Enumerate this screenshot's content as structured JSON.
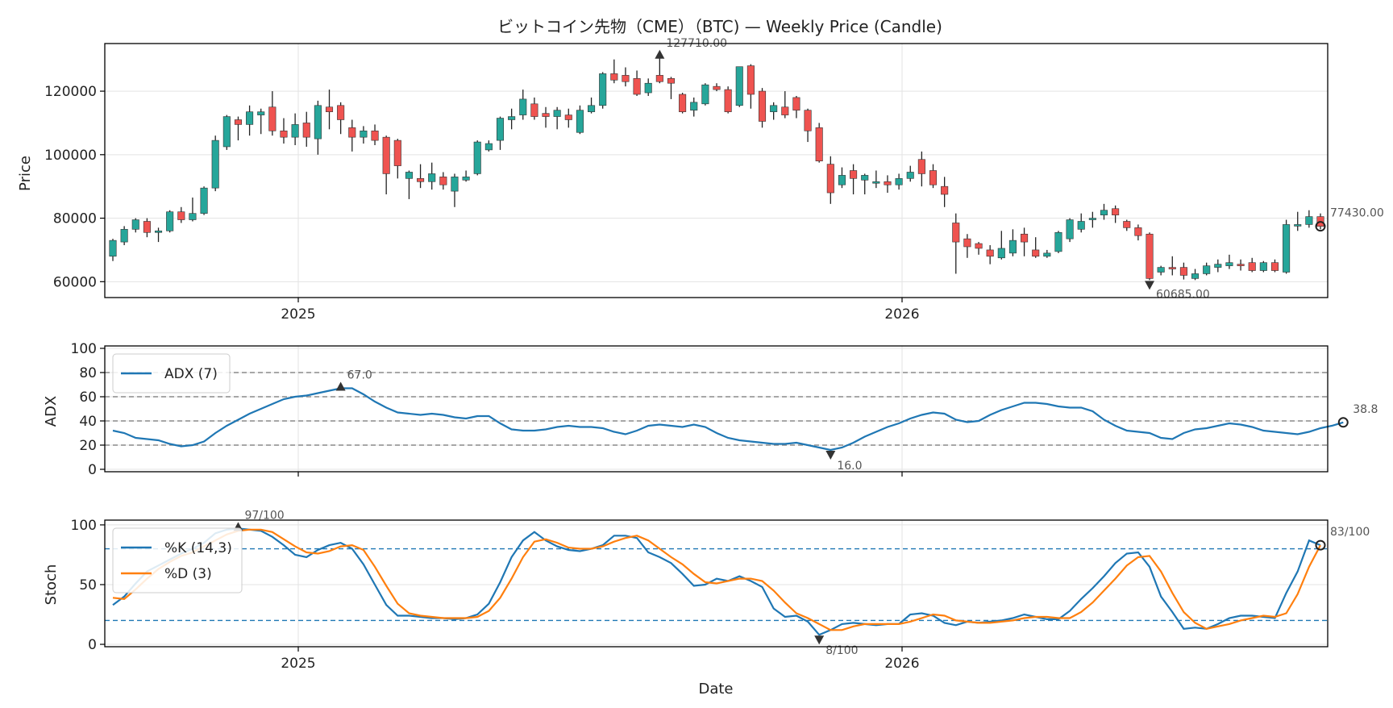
{
  "chart_data": {
    "title": "ビットコイン先物（CME）（BTC) — Weekly Price (Candle)",
    "xlabel": "Date",
    "x_ticks": [
      "2025",
      "2026"
    ],
    "colors": {
      "up": "#26a69a",
      "down": "#ef5350",
      "adx": "#1f77b4",
      "k": "#1f77b4",
      "d": "#ff7f0e"
    },
    "panels": [
      {
        "type": "candlestick",
        "ylabel": "Price",
        "ylim": [
          55000,
          135000
        ],
        "yticks": [
          60000,
          80000,
          100000,
          120000
        ],
        "grid": true,
        "annotations": {
          "high": "127710.00",
          "low": "60685.00",
          "last": "77430.00"
        },
        "candles": [
          [
            68000,
            73000,
            66500,
            73500
          ],
          [
            72500,
            76500,
            71500,
            77500
          ],
          [
            76500,
            79500,
            75500,
            80000
          ],
          [
            79000,
            75500,
            74000,
            80000
          ],
          [
            75500,
            76000,
            72500,
            77000
          ],
          [
            76000,
            82000,
            75500,
            82500
          ],
          [
            82000,
            79500,
            78500,
            83500
          ],
          [
            79500,
            81500,
            79000,
            86500
          ],
          [
            81500,
            89500,
            81000,
            90000
          ],
          [
            89500,
            104500,
            88500,
            106000
          ],
          [
            102500,
            112000,
            101500,
            112500
          ],
          [
            111000,
            109500,
            104500,
            112000
          ],
          [
            109500,
            113500,
            106000,
            115500
          ],
          [
            112500,
            113500,
            106500,
            114500
          ],
          [
            115000,
            107500,
            106000,
            120000
          ],
          [
            107500,
            105500,
            103500,
            111500
          ],
          [
            105500,
            109500,
            103000,
            113000
          ],
          [
            110000,
            105500,
            102500,
            113500
          ],
          [
            105000,
            115500,
            100000,
            117000
          ],
          [
            115000,
            113500,
            108000,
            120500
          ],
          [
            115500,
            111000,
            106500,
            116500
          ],
          [
            108500,
            105500,
            101000,
            111000
          ],
          [
            105500,
            107500,
            103500,
            109000
          ],
          [
            107500,
            104500,
            103000,
            109500
          ],
          [
            105500,
            94000,
            87500,
            106000
          ],
          [
            104500,
            96500,
            92500,
            105000
          ],
          [
            92500,
            94500,
            86000,
            95000
          ],
          [
            92500,
            91500,
            89500,
            97000
          ],
          [
            91500,
            94000,
            89000,
            97500
          ],
          [
            93000,
            90500,
            89000,
            94500
          ],
          [
            88500,
            93000,
            83500,
            94000
          ],
          [
            92000,
            93000,
            91500,
            95000
          ],
          [
            94000,
            104000,
            93500,
            104500
          ],
          [
            101500,
            103500,
            101000,
            104500
          ],
          [
            104500,
            111500,
            101500,
            112000
          ],
          [
            111000,
            112000,
            108000,
            114500
          ],
          [
            112500,
            117500,
            111000,
            120500
          ],
          [
            116000,
            112000,
            111000,
            118000
          ],
          [
            113000,
            112000,
            108500,
            115000
          ],
          [
            112000,
            114000,
            108000,
            115000
          ],
          [
            112500,
            111000,
            108500,
            114500
          ],
          [
            107000,
            114000,
            106500,
            115500
          ],
          [
            113500,
            115500,
            113000,
            118000
          ],
          [
            115500,
            125500,
            114500,
            126000
          ],
          [
            125500,
            123500,
            122500,
            130000
          ],
          [
            125000,
            123000,
            121500,
            127500
          ],
          [
            124000,
            119000,
            118500,
            126500
          ],
          [
            119500,
            122500,
            118500,
            124000
          ],
          [
            125000,
            123000,
            122500,
            131000
          ],
          [
            124000,
            122500,
            117500,
            124500
          ],
          [
            119000,
            113500,
            113000,
            119500
          ],
          [
            114000,
            116500,
            112000,
            118000
          ],
          [
            116000,
            122000,
            115500,
            122500
          ],
          [
            121500,
            120500,
            120000,
            122500
          ],
          [
            120500,
            113500,
            113000,
            121500
          ],
          [
            115500,
            127710,
            115000,
            127710
          ],
          [
            128000,
            119000,
            114500,
            128500
          ],
          [
            120000,
            110500,
            108500,
            121000
          ],
          [
            113500,
            115500,
            111000,
            116500
          ],
          [
            115000,
            112500,
            111500,
            120000
          ],
          [
            118000,
            114000,
            111500,
            118500
          ],
          [
            114000,
            107500,
            104000,
            114500
          ],
          [
            108500,
            98000,
            97500,
            110000
          ],
          [
            97000,
            88000,
            84500,
            99500
          ],
          [
            90500,
            93500,
            89500,
            96000
          ],
          [
            95000,
            92500,
            87500,
            97000
          ],
          [
            92000,
            93500,
            87500,
            94000
          ],
          [
            91000,
            91500,
            89500,
            95000
          ],
          [
            91500,
            90500,
            88000,
            93500
          ],
          [
            90500,
            92500,
            89000,
            94000
          ],
          [
            92500,
            94500,
            91500,
            96500
          ],
          [
            98500,
            94000,
            90000,
            101000
          ],
          [
            95000,
            90500,
            89500,
            97000
          ],
          [
            90000,
            87500,
            83500,
            93000
          ],
          [
            78500,
            72500,
            62500,
            81500
          ],
          [
            73500,
            71000,
            67500,
            75000
          ],
          [
            72000,
            70500,
            68500,
            72500
          ],
          [
            70000,
            68000,
            65500,
            71500
          ],
          [
            67500,
            70500,
            67000,
            76000
          ],
          [
            69000,
            73000,
            68000,
            76500
          ],
          [
            75000,
            72500,
            68000,
            77000
          ],
          [
            70000,
            68000,
            67500,
            74000
          ],
          [
            68000,
            69000,
            67500,
            70000
          ],
          [
            69500,
            75500,
            69000,
            76000
          ],
          [
            73500,
            79500,
            72500,
            80000
          ],
          [
            76500,
            79000,
            75500,
            81500
          ],
          [
            79500,
            80000,
            77000,
            82000
          ],
          [
            81000,
            82500,
            79500,
            84500
          ],
          [
            83000,
            81000,
            78500,
            84000
          ],
          [
            79000,
            77000,
            76000,
            79500
          ],
          [
            77000,
            74500,
            73000,
            78000
          ],
          [
            75000,
            61000,
            60500,
            75500
          ],
          [
            63000,
            64500,
            62000,
            65000
          ],
          [
            64500,
            64000,
            62000,
            68000
          ],
          [
            64500,
            62000,
            60685,
            66000
          ],
          [
            61000,
            62500,
            60500,
            64000
          ],
          [
            62500,
            65000,
            62000,
            66000
          ],
          [
            64500,
            65500,
            63000,
            67000
          ],
          [
            65000,
            66000,
            64000,
            68500
          ],
          [
            65500,
            65000,
            63500,
            67000
          ],
          [
            66000,
            63500,
            63000,
            67500
          ],
          [
            63500,
            66000,
            63000,
            66500
          ],
          [
            66000,
            63500,
            63000,
            67000
          ],
          [
            63000,
            78000,
            62500,
            79500
          ],
          [
            77500,
            78000,
            76000,
            82000
          ],
          [
            78000,
            80500,
            77000,
            82500
          ],
          [
            80500,
            77430,
            76500,
            81500
          ]
        ]
      },
      {
        "type": "line",
        "ylabel": "ADX",
        "ylim": [
          -2,
          102
        ],
        "yticks": [
          0,
          20,
          40,
          60,
          80,
          100
        ],
        "hlines": [
          20,
          40,
          60,
          80
        ],
        "annotations": {
          "high": "67.0",
          "low": "16.0",
          "last": "38.8"
        },
        "series": [
          {
            "name": "ADX (7)",
            "values": [
              32,
              30,
              26,
              25,
              24,
              21,
              19,
              20,
              23,
              30,
              36,
              41,
              46,
              50,
              54,
              58,
              60,
              61,
              63,
              65,
              67,
              67,
              62,
              56,
              51,
              47,
              46,
              45,
              46,
              45,
              43,
              42,
              44,
              44,
              38,
              33,
              32,
              32,
              33,
              35,
              36,
              35,
              35,
              34,
              31,
              29,
              32,
              36,
              37,
              36,
              35,
              37,
              35,
              30,
              26,
              24,
              23,
              22,
              21,
              21,
              22,
              20,
              18,
              16,
              18,
              22,
              27,
              31,
              35,
              38,
              42,
              45,
              47,
              46,
              41,
              39,
              40,
              45,
              49,
              52,
              55,
              55,
              54,
              52,
              51,
              51,
              48,
              41,
              36,
              32,
              31,
              30,
              26,
              25,
              30,
              33,
              34,
              36,
              38,
              37,
              35,
              32,
              31,
              30,
              29,
              31,
              34,
              36,
              38.8
            ]
          }
        ]
      },
      {
        "type": "line",
        "ylabel": "Stoch",
        "ylim": [
          -2,
          104
        ],
        "yticks": [
          0,
          50,
          100
        ],
        "hlines": [
          20,
          80
        ],
        "annotations": {
          "high": "97/100",
          "low": "8/100",
          "last": "83/100"
        },
        "series": [
          {
            "name": "%K (14,3)",
            "values": [
              33,
              40,
              51,
              61,
              66,
              71,
              76,
              80,
              85,
              93,
              96,
              97,
              96,
              95,
              90,
              83,
              75,
              73,
              79,
              83,
              85,
              80,
              67,
              50,
              33,
              24,
              24,
              23,
              22,
              22,
              21,
              22,
              25,
              34,
              52,
              73,
              87,
              94,
              87,
              82,
              79,
              78,
              80,
              83,
              91,
              91,
              89,
              77,
              73,
              68,
              59,
              49,
              50,
              55,
              53,
              57,
              53,
              48,
              30,
              23,
              24,
              19,
              8,
              12,
              17,
              18,
              17,
              16,
              17,
              17,
              25,
              26,
              24,
              18,
              16,
              19,
              18,
              19,
              20,
              22,
              25,
              23,
              21,
              21,
              28,
              38,
              47,
              57,
              68,
              76,
              77,
              65,
              40,
              27,
              13,
              14,
              13,
              17,
              22,
              24,
              24,
              23,
              22,
              43,
              61,
              87,
              83
            ]
          },
          {
            "name": "%D (3)",
            "values": [
              39,
              38,
              46,
              55,
              63,
              69,
              74,
              77,
              82,
              87,
              92,
              95,
              96,
              96,
              94,
              88,
              82,
              77,
              76,
              78,
              82,
              83,
              79,
              65,
              49,
              34,
              26,
              24,
              23,
              22,
              22,
              22,
              23,
              28,
              39,
              55,
              73,
              86,
              88,
              85,
              81,
              80,
              80,
              82,
              86,
              89,
              91,
              87,
              80,
              73,
              67,
              59,
              52,
              51,
              53,
              55,
              55,
              53,
              45,
              35,
              26,
              22,
              17,
              12,
              12,
              15,
              17,
              17,
              17,
              17,
              19,
              22,
              25,
              24,
              20,
              19,
              18,
              18,
              19,
              20,
              22,
              23,
              23,
              22,
              22,
              27,
              35,
              45,
              55,
              66,
              73,
              74,
              61,
              43,
              27,
              18,
              13,
              15,
              17,
              20,
              22,
              24,
              23,
              26,
              42,
              65,
              83
            ]
          }
        ]
      }
    ]
  }
}
